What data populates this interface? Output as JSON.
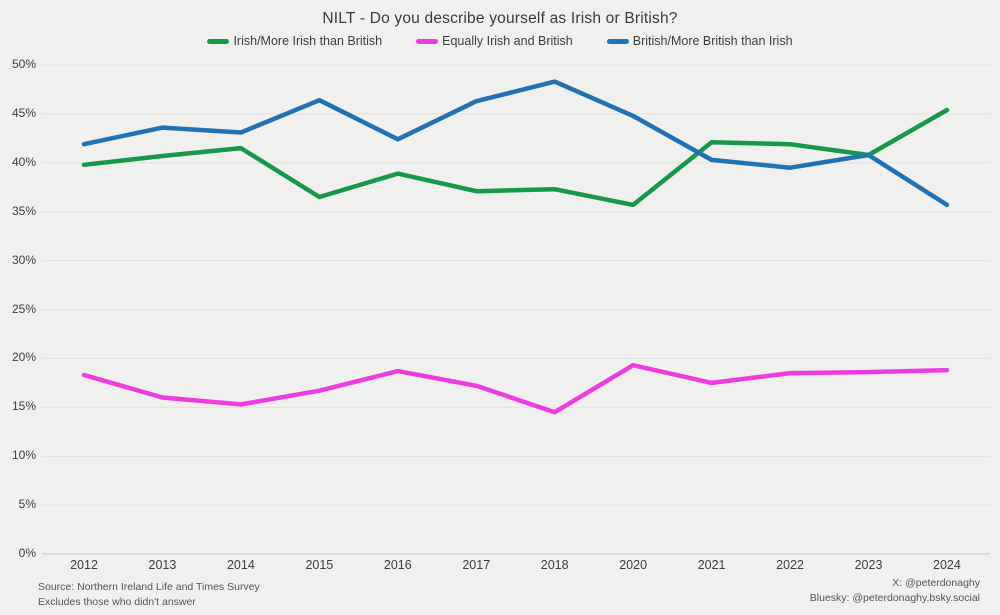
{
  "title": "NILT - Do you describe yourself as Irish or British?",
  "footer": {
    "source_line1": "Source: Northern Ireland Life and Times Survey",
    "source_line2": "Excludes those who didn't answer",
    "social_line1": "X: @peterdonaghy",
    "social_line2": "Bluesky: @peterdonaghy.bsky.social"
  },
  "colors": {
    "background": "#f0f0ee",
    "gridline": "#e0e0de",
    "zero_line": "#c9c9c7",
    "title_text": "#3b3b3b",
    "axis_text": "#3d3d3d",
    "footer_text": "#555553"
  },
  "chart_data": {
    "type": "line",
    "title": "NILT - Do you describe yourself as Irish or British?",
    "categories": [
      "2012",
      "2013",
      "2014",
      "2015",
      "2016",
      "2017",
      "2018",
      "2020",
      "2021",
      "2022",
      "2023",
      "2024"
    ],
    "series": [
      {
        "name": "Irish/More Irish than British",
        "color": "#16984b",
        "values": [
          39.8,
          40.7,
          41.5,
          36.5,
          38.9,
          37.1,
          37.3,
          35.7,
          42.1,
          41.9,
          40.8,
          45.4
        ]
      },
      {
        "name": "Equally Irish and British",
        "color": "#ee3ce0",
        "values": [
          18.3,
          16.0,
          15.3,
          16.7,
          18.7,
          17.2,
          14.5,
          19.3,
          17.5,
          18.5,
          18.6,
          18.8
        ]
      },
      {
        "name": "British/More British than Irish",
        "color": "#2171b5",
        "values": [
          41.9,
          43.6,
          43.1,
          46.4,
          42.4,
          46.3,
          48.3,
          44.8,
          40.3,
          39.5,
          40.8,
          35.7
        ]
      }
    ],
    "xlabel": "",
    "ylabel": "",
    "ylim": [
      0,
      50
    ],
    "ytick_step": 5,
    "ytick_labels": [
      "0%",
      "5%",
      "10%",
      "15%",
      "20%",
      "25%",
      "30%",
      "35%",
      "40%",
      "45%",
      "50%"
    ],
    "grid": true,
    "legend_position": "top"
  }
}
